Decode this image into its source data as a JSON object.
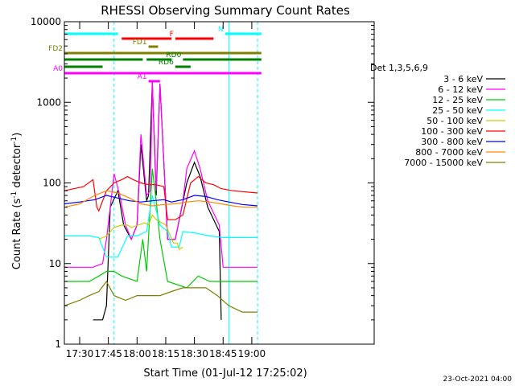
{
  "chart_data": {
    "type": "line",
    "title": "RHESSI Observing Summary Count Rates",
    "xlabel": "Start Time (01-Jul-12 17:25:02)",
    "ylabel_main": "Count Rate (s",
    "ylabel_exp1": "-1",
    "ylabel_mid": " detector",
    "ylabel_exp2": "-1",
    "ylabel_end": ")",
    "yscale": "log",
    "ylim": [
      1,
      10000
    ],
    "xlim_minutes": [
      1042,
      1204
    ],
    "xticks": [
      {
        "label": "17:30",
        "min": 1050
      },
      {
        "label": "17:45",
        "min": 1065
      },
      {
        "label": "18:00",
        "min": 1080
      },
      {
        "label": "18:15",
        "min": 1095
      },
      {
        "label": "18:30",
        "min": 1110
      },
      {
        "label": "18:45",
        "min": 1125
      },
      {
        "label": "19:00",
        "min": 1140
      }
    ],
    "yticks": [
      {
        "label": "1",
        "value": 1
      },
      {
        "label": "10",
        "value": 10
      },
      {
        "label": "100",
        "value": 100
      },
      {
        "label": "1000",
        "value": 1000
      },
      {
        "label": "10000",
        "value": 10000
      }
    ],
    "legend_title": "Det 1,3,5,6,9",
    "legend_placement": "right",
    "series": [
      {
        "name": "3 - 6 keV",
        "color": "#000000",
        "points": [
          [
            1057,
            2
          ],
          [
            1062,
            2
          ],
          [
            1064,
            3
          ],
          [
            1066,
            50
          ],
          [
            1070,
            80
          ],
          [
            1073,
            30
          ],
          [
            1077,
            20
          ],
          [
            1080,
            30
          ],
          [
            1082,
            300
          ],
          [
            1085,
            60
          ],
          [
            1086,
            70
          ],
          [
            1088,
            1800
          ],
          [
            1090,
            70
          ],
          [
            1092,
            1700
          ],
          [
            1096,
            20
          ],
          [
            1100,
            20
          ],
          [
            1106,
            100
          ],
          [
            1110,
            180
          ],
          [
            1113,
            120
          ],
          [
            1117,
            50
          ],
          [
            1123,
            25
          ],
          [
            1124,
            2
          ]
        ]
      },
      {
        "name": "6 - 12 keV",
        "color": "#ff00ff",
        "points": [
          [
            1042,
            9
          ],
          [
            1057,
            9
          ],
          [
            1062,
            10
          ],
          [
            1064,
            20
          ],
          [
            1066,
            50
          ],
          [
            1068,
            130
          ],
          [
            1071,
            70
          ],
          [
            1074,
            30
          ],
          [
            1077,
            20
          ],
          [
            1080,
            30
          ],
          [
            1082,
            400
          ],
          [
            1085,
            70
          ],
          [
            1087,
            80
          ],
          [
            1088,
            1800
          ],
          [
            1090,
            80
          ],
          [
            1092,
            1700
          ],
          [
            1096,
            20
          ],
          [
            1100,
            20
          ],
          [
            1104,
            60
          ],
          [
            1106,
            150
          ],
          [
            1110,
            250
          ],
          [
            1113,
            150
          ],
          [
            1117,
            60
          ],
          [
            1123,
            30
          ],
          [
            1125,
            9
          ],
          [
            1143,
            9
          ]
        ]
      },
      {
        "name": "12 - 25 keV",
        "color": "#00cc00",
        "points": [
          [
            1042,
            6
          ],
          [
            1055,
            6
          ],
          [
            1060,
            7
          ],
          [
            1064,
            8
          ],
          [
            1068,
            8
          ],
          [
            1072,
            7
          ],
          [
            1080,
            6
          ],
          [
            1083,
            20
          ],
          [
            1085,
            8
          ],
          [
            1088,
            150
          ],
          [
            1090,
            60
          ],
          [
            1092,
            20
          ],
          [
            1096,
            6
          ],
          [
            1106,
            5
          ],
          [
            1112,
            7
          ],
          [
            1118,
            6
          ],
          [
            1125,
            6
          ],
          [
            1143,
            6
          ]
        ]
      },
      {
        "name": "25 - 50 keV",
        "color": "#00ffff",
        "points": [
          [
            1042,
            22
          ],
          [
            1055,
            22
          ],
          [
            1060,
            21
          ],
          [
            1064,
            12
          ],
          [
            1070,
            12
          ],
          [
            1075,
            22
          ],
          [
            1080,
            22
          ],
          [
            1085,
            25
          ],
          [
            1088,
            70
          ],
          [
            1092,
            30
          ],
          [
            1096,
            25
          ],
          [
            1098,
            16
          ],
          [
            1102,
            16
          ],
          [
            1104,
            25
          ],
          [
            1110,
            24
          ],
          [
            1118,
            22
          ],
          [
            1125,
            21
          ],
          [
            1143,
            21
          ]
        ]
      },
      {
        "name": "50 - 100 keV",
        "color": "#cccc00",
        "points": [
          [
            1060,
            20
          ],
          [
            1064,
            22
          ],
          [
            1068,
            28
          ],
          [
            1072,
            30
          ],
          [
            1075,
            30
          ],
          [
            1077,
            28
          ],
          [
            1084,
            32
          ],
          [
            1086,
            30
          ],
          [
            1088,
            40
          ],
          [
            1090,
            35
          ],
          [
            1095,
            30
          ],
          [
            1099,
            18
          ],
          [
            1101,
            18
          ],
          [
            1102,
            15
          ],
          [
            1104,
            16
          ]
        ]
      },
      {
        "name": "100 - 300 keV",
        "color": "#ff0000",
        "points": [
          [
            1042,
            80
          ],
          [
            1052,
            90
          ],
          [
            1057,
            110
          ],
          [
            1059,
            50
          ],
          [
            1060,
            45
          ],
          [
            1064,
            80
          ],
          [
            1068,
            100
          ],
          [
            1072,
            110
          ],
          [
            1075,
            120
          ],
          [
            1078,
            110
          ],
          [
            1082,
            100
          ],
          [
            1086,
            95
          ],
          [
            1090,
            95
          ],
          [
            1094,
            90
          ],
          [
            1096,
            35
          ],
          [
            1100,
            35
          ],
          [
            1104,
            40
          ],
          [
            1108,
            100
          ],
          [
            1112,
            120
          ],
          [
            1116,
            100
          ],
          [
            1120,
            95
          ],
          [
            1124,
            85
          ],
          [
            1130,
            80
          ],
          [
            1143,
            75
          ]
        ]
      },
      {
        "name": "300 - 800 keV",
        "color": "#0000ff",
        "points": [
          [
            1042,
            55
          ],
          [
            1050,
            58
          ],
          [
            1058,
            62
          ],
          [
            1064,
            70
          ],
          [
            1070,
            65
          ],
          [
            1076,
            60
          ],
          [
            1082,
            58
          ],
          [
            1088,
            60
          ],
          [
            1094,
            62
          ],
          [
            1098,
            58
          ],
          [
            1104,
            62
          ],
          [
            1110,
            70
          ],
          [
            1116,
            68
          ],
          [
            1122,
            62
          ],
          [
            1128,
            58
          ],
          [
            1135,
            54
          ],
          [
            1143,
            52
          ]
        ]
      },
      {
        "name": "800 - 7000 keV",
        "color": "#ff8800",
        "points": [
          [
            1042,
            50
          ],
          [
            1050,
            55
          ],
          [
            1058,
            70
          ],
          [
            1064,
            80
          ],
          [
            1070,
            75
          ],
          [
            1076,
            65
          ],
          [
            1082,
            55
          ],
          [
            1088,
            52
          ],
          [
            1094,
            54
          ],
          [
            1100,
            55
          ],
          [
            1106,
            58
          ],
          [
            1112,
            60
          ],
          [
            1118,
            58
          ],
          [
            1124,
            55
          ],
          [
            1130,
            52
          ],
          [
            1136,
            50
          ],
          [
            1143,
            50
          ]
        ]
      },
      {
        "name": "7000 - 15000 keV",
        "color": "#808000",
        "points": [
          [
            1042,
            3
          ],
          [
            1050,
            3.5
          ],
          [
            1055,
            4
          ],
          [
            1060,
            4.5
          ],
          [
            1064,
            6
          ],
          [
            1068,
            4
          ],
          [
            1074,
            3.5
          ],
          [
            1080,
            4
          ],
          [
            1086,
            4
          ],
          [
            1092,
            4
          ],
          [
            1098,
            4.5
          ],
          [
            1104,
            5
          ],
          [
            1110,
            5
          ],
          [
            1116,
            5
          ],
          [
            1122,
            4
          ],
          [
            1128,
            3
          ],
          [
            1135,
            2.5
          ],
          [
            1143,
            2.5
          ]
        ]
      }
    ],
    "state_bars": [
      {
        "label": "N",
        "color": "#00ffff",
        "segments": [
          [
            1042,
            1070
          ],
          [
            1126,
            1145
          ]
        ]
      },
      {
        "label": "F",
        "color": "#ff0000",
        "segments": [
          [
            1072,
            1098
          ],
          [
            1100,
            1120
          ]
        ]
      },
      {
        "label": "FD1",
        "color": "#808000",
        "segments": [
          [
            1086,
            1091
          ]
        ]
      },
      {
        "label": "FD2",
        "color": "#808000",
        "segments": [
          [
            1042,
            1145
          ]
        ]
      },
      {
        "label": "RD0",
        "color": "#008000",
        "segments": [
          [
            1042,
            1083
          ],
          [
            1085,
            1098
          ],
          [
            1104,
            1145
          ]
        ]
      },
      {
        "label": "RD6",
        "color": "#008000",
        "segments": [
          [
            1042,
            1062
          ],
          [
            1100,
            1108
          ]
        ]
      },
      {
        "label": "A0",
        "color": "#ff00ff",
        "segments": [
          [
            1042,
            1145
          ]
        ]
      },
      {
        "label": "A1",
        "color": "#ff00ff",
        "segments": [
          [
            1086,
            1092
          ]
        ]
      }
    ],
    "vlines_minutes": [
      1042,
      1068,
      1128,
      1143
    ],
    "footer": "23-Oct-2021 04:00"
  }
}
